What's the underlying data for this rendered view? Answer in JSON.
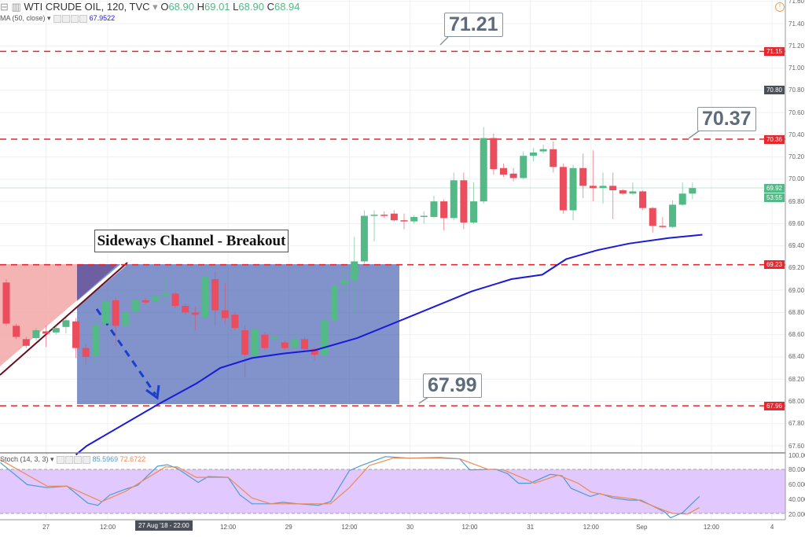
{
  "header": {
    "symbol": "WTI CRUDE OIL, 120, TVC",
    "open_label": "O",
    "open": "68.90",
    "high_label": "H",
    "high": "69.01",
    "low_label": "L",
    "low": "68.90",
    "close_label": "C",
    "close": "68.94",
    "ma_label": "MA (50, close)",
    "ma_value": "67.9522",
    "stoch_label": "Stoch (14, 3, 3)",
    "stoch_k": "85.5969",
    "stoch_d": "72.6722"
  },
  "annotations": {
    "title": "Sideways Channel - Breakout",
    "callout_top": "71.21",
    "callout_mid": "70.37",
    "callout_low": "67.99"
  },
  "price_axis": {
    "ticks": [
      "71.60",
      "71.40",
      "71.20",
      "71.00",
      "70.80",
      "70.60",
      "70.40",
      "70.20",
      "70.00",
      "69.80",
      "69.60",
      "69.40",
      "69.20",
      "69.00",
      "68.80",
      "68.60",
      "68.40",
      "68.20",
      "68.00",
      "67.80",
      "67.60"
    ],
    "labels": [
      {
        "text": "71.15",
        "value": 71.15,
        "color": "#e8262d"
      },
      {
        "text": "70.80",
        "value": 70.8,
        "color": "#4a4f58"
      },
      {
        "text": "70.36",
        "value": 70.36,
        "color": "#e8262d"
      },
      {
        "text": "69.92",
        "value": 69.92,
        "color": "#53b987"
      },
      {
        "text": "53:55",
        "value": 69.83,
        "color": "#53b987"
      },
      {
        "text": "69.23",
        "value": 69.23,
        "color": "#e8262d"
      },
      {
        "text": "67.96",
        "value": 67.96,
        "color": "#e8262d"
      }
    ]
  },
  "stoch_axis": {
    "ticks": [
      "100.00",
      "80.000",
      "60.000",
      "40.000",
      "20.000"
    ]
  },
  "time_axis": {
    "labels": [
      {
        "text": "27",
        "bar": 4
      },
      {
        "text": "12:00",
        "bar": 10.2
      },
      {
        "text": "12:00",
        "bar": 22.3
      },
      {
        "text": "29",
        "bar": 28.4
      },
      {
        "text": "12:00",
        "bar": 34.5
      },
      {
        "text": "30",
        "bar": 40.6
      },
      {
        "text": "12:00",
        "bar": 46.6
      },
      {
        "text": "31",
        "bar": 52.7
      },
      {
        "text": "12:00",
        "bar": 58.8
      },
      {
        "text": "Sep",
        "bar": 63.9
      },
      {
        "text": "12:00",
        "bar": 70.9
      },
      {
        "text": "4",
        "bar": 77
      }
    ],
    "cursor_label": "27 Aug '18 - 22:00"
  },
  "chart_data": {
    "type": "candlestick",
    "title": "WTI CRUDE OIL, 120, TVC",
    "ylim": [
      67.5,
      71.65
    ],
    "grid": true,
    "colors": {
      "up": "#53b987",
      "down": "#eb4d5c",
      "ma": "#1a1adb",
      "stoch_k": "#4f9ad8",
      "stoch_d": "#f08a4b",
      "level": "#e8262d",
      "channel": "#5069b5",
      "stoch_band": "#e1c8ff"
    },
    "horizontal_levels": [
      71.15,
      70.36,
      69.23,
      67.96
    ],
    "candles": [
      [
        69.07,
        69.1,
        68.68,
        68.7
      ],
      [
        68.68,
        68.7,
        68.56,
        68.58
      ],
      [
        68.56,
        68.58,
        68.48,
        68.5
      ],
      [
        68.57,
        68.66,
        68.55,
        68.64
      ],
      [
        68.63,
        68.68,
        68.49,
        68.61
      ],
      [
        68.62,
        68.68,
        68.6,
        68.66
      ],
      [
        68.67,
        68.75,
        68.61,
        68.73
      ],
      [
        68.72,
        68.75,
        68.39,
        68.48
      ],
      [
        68.48,
        68.51,
        68.33,
        68.4
      ],
      [
        68.41,
        68.75,
        68.33,
        68.69
      ],
      [
        68.7,
        68.92,
        68.68,
        68.9
      ],
      [
        68.91,
        68.94,
        68.5,
        68.68
      ],
      [
        68.68,
        68.82,
        68.66,
        68.8
      ],
      [
        68.81,
        68.93,
        68.79,
        68.91
      ],
      [
        68.91,
        68.93,
        68.87,
        68.89
      ],
      [
        68.9,
        68.97,
        68.88,
        68.95
      ],
      [
        68.95,
        69.12,
        68.92,
        68.97
      ],
      [
        68.97,
        68.99,
        68.84,
        68.86
      ],
      [
        68.86,
        68.88,
        68.78,
        68.8
      ],
      [
        68.8,
        68.85,
        68.64,
        68.78
      ],
      [
        68.76,
        69.14,
        68.74,
        69.12
      ],
      [
        69.1,
        69.17,
        68.68,
        68.82
      ],
      [
        68.82,
        69.07,
        68.7,
        68.75
      ],
      [
        68.78,
        68.8,
        68.64,
        68.66
      ],
      [
        68.64,
        68.69,
        68.22,
        68.42
      ],
      [
        68.41,
        68.67,
        68.39,
        68.65
      ],
      [
        68.6,
        68.62,
        68.46,
        68.48
      ],
      [
        68.56,
        68.6,
        68.53,
        68.58
      ],
      [
        68.53,
        68.55,
        68.46,
        68.48
      ],
      [
        68.49,
        68.61,
        68.47,
        68.56
      ],
      [
        68.56,
        68.58,
        68.45,
        68.47
      ],
      [
        68.47,
        68.49,
        68.37,
        68.42
      ],
      [
        68.42,
        68.78,
        68.39,
        68.73
      ],
      [
        68.73,
        69.08,
        68.7,
        69.04
      ],
      [
        69.05,
        69.19,
        68.95,
        69.09
      ],
      [
        69.09,
        69.48,
        68.78,
        69.26
      ],
      [
        69.26,
        69.72,
        69.24,
        69.67
      ],
      [
        69.67,
        69.72,
        69.44,
        69.68
      ],
      [
        69.68,
        69.71,
        69.65,
        69.67
      ],
      [
        69.69,
        69.72,
        69.62,
        69.63
      ],
      [
        69.63,
        69.69,
        69.55,
        69.62
      ],
      [
        69.62,
        69.68,
        69.6,
        69.66
      ],
      [
        69.66,
        69.71,
        69.6,
        69.67
      ],
      [
        69.66,
        69.85,
        69.65,
        69.8
      ],
      [
        69.8,
        69.82,
        69.54,
        69.65
      ],
      [
        69.65,
        70.06,
        69.63,
        69.99
      ],
      [
        69.99,
        70.06,
        69.55,
        69.61
      ],
      [
        69.61,
        69.97,
        69.6,
        69.8
      ],
      [
        69.8,
        70.47,
        69.78,
        70.37
      ],
      [
        70.37,
        70.41,
        70.04,
        70.09
      ],
      [
        70.1,
        70.14,
        70.02,
        70.04
      ],
      [
        70.05,
        70.1,
        69.98,
        70.01
      ],
      [
        70.01,
        70.25,
        70.0,
        70.21
      ],
      [
        70.21,
        70.28,
        70.16,
        70.24
      ],
      [
        70.25,
        70.31,
        70.23,
        70.27
      ],
      [
        70.27,
        70.34,
        70.06,
        70.11
      ],
      [
        70.11,
        70.14,
        69.69,
        69.72
      ],
      [
        69.72,
        70.13,
        69.63,
        70.1
      ],
      [
        70.1,
        70.23,
        69.83,
        69.94
      ],
      [
        69.94,
        70.26,
        69.8,
        69.92
      ],
      [
        69.92,
        70.06,
        69.78,
        69.94
      ],
      [
        69.94,
        70.06,
        69.64,
        69.9
      ],
      [
        69.9,
        69.91,
        69.86,
        69.87
      ],
      [
        69.87,
        69.97,
        69.86,
        69.89
      ],
      [
        69.89,
        69.9,
        69.72,
        69.74
      ],
      [
        69.74,
        69.75,
        69.52,
        69.58
      ],
      [
        69.58,
        69.66,
        69.56,
        69.57
      ],
      [
        69.57,
        69.81,
        69.56,
        69.77
      ],
      [
        69.77,
        69.97,
        69.76,
        69.87
      ],
      [
        69.87,
        69.97,
        69.82,
        69.92
      ]
    ],
    "candle_fields": [
      "open",
      "high",
      "low",
      "close"
    ],
    "ma_50": [
      [
        7,
        67.52
      ],
      [
        8.1,
        67.6
      ],
      [
        15.2,
        67.97
      ],
      [
        19.1,
        68.16
      ],
      [
        21.5,
        68.3
      ],
      [
        24.7,
        68.39
      ],
      [
        27.8,
        68.43
      ],
      [
        31,
        68.46
      ],
      [
        35.3,
        68.57
      ],
      [
        39.7,
        68.73
      ],
      [
        46.8,
        68.99
      ],
      [
        50.8,
        69.1
      ],
      [
        53.9,
        69.14
      ],
      [
        56.3,
        69.28
      ],
      [
        59.4,
        69.36
      ],
      [
        62.6,
        69.42
      ],
      [
        66.6,
        69.47
      ],
      [
        70,
        69.5
      ]
    ],
    "stoch": {
      "ylim": [
        0,
        100
      ],
      "bands": [
        20,
        80
      ],
      "k": [
        [
          -0.6,
          89
        ],
        [
          2.1,
          59
        ],
        [
          4.1,
          55
        ],
        [
          6.1,
          57
        ],
        [
          8.2,
          34
        ],
        [
          9.2,
          31
        ],
        [
          10.4,
          45
        ],
        [
          12,
          53
        ],
        [
          13.2,
          58
        ],
        [
          15.2,
          84
        ],
        [
          16.2,
          86
        ],
        [
          17.2,
          81
        ],
        [
          19.3,
          62
        ],
        [
          20.3,
          70
        ],
        [
          22.3,
          69
        ],
        [
          23.5,
          45
        ],
        [
          24.7,
          33
        ],
        [
          26.6,
          33
        ],
        [
          27.8,
          35
        ],
        [
          29.4,
          33
        ],
        [
          31.4,
          31
        ],
        [
          32.6,
          36
        ],
        [
          34.5,
          78
        ],
        [
          35.7,
          85
        ],
        [
          38.1,
          97
        ],
        [
          40.5,
          95
        ],
        [
          43.6,
          96
        ],
        [
          45.6,
          94
        ],
        [
          46.6,
          79
        ],
        [
          49.2,
          80
        ],
        [
          50.4,
          74
        ],
        [
          51.5,
          61
        ],
        [
          52.7,
          61
        ],
        [
          54.7,
          73
        ],
        [
          55.9,
          71
        ],
        [
          56.8,
          54
        ],
        [
          58.7,
          43
        ],
        [
          59.7,
          47
        ],
        [
          61,
          41
        ],
        [
          62.6,
          38
        ],
        [
          63.8,
          38
        ],
        [
          65,
          30
        ],
        [
          66.2,
          22
        ],
        [
          66.8,
          14
        ],
        [
          68,
          21
        ],
        [
          69.7,
          43
        ]
      ],
      "d": [
        [
          -0.6,
          93
        ],
        [
          4.1,
          57
        ],
        [
          6.1,
          57
        ],
        [
          9.6,
          36
        ],
        [
          12,
          50
        ],
        [
          16,
          83
        ],
        [
          17.2,
          83
        ],
        [
          19.1,
          69
        ],
        [
          22.3,
          69
        ],
        [
          24.7,
          41
        ],
        [
          26.6,
          33
        ],
        [
          32.6,
          33
        ],
        [
          34.5,
          55
        ],
        [
          36.5,
          85
        ],
        [
          38.9,
          95
        ],
        [
          43.6,
          95
        ],
        [
          45.6,
          94
        ],
        [
          48.4,
          80
        ],
        [
          50,
          79
        ],
        [
          52.3,
          66
        ],
        [
          53.1,
          61
        ],
        [
          55.5,
          72
        ],
        [
          57.5,
          61
        ],
        [
          58.8,
          49
        ],
        [
          61,
          43
        ],
        [
          63.4,
          39
        ],
        [
          65.8,
          26
        ],
        [
          67,
          20
        ],
        [
          68.5,
          19
        ],
        [
          69.7,
          28
        ]
      ]
    }
  }
}
